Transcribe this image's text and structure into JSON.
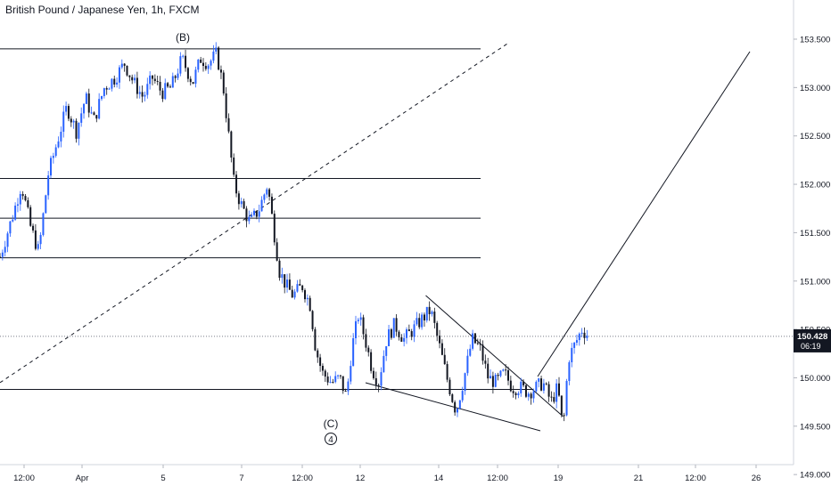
{
  "window": {
    "title": "British Pound / Japanese Yen, 1h, FXCM"
  },
  "chart_data": {
    "type": "candlestick",
    "symbol": "British Pound / Japanese Yen",
    "interval": "1h",
    "source": "FXCM",
    "y_axis": {
      "side": "right",
      "ticks": [
        "153.500",
        "153.000",
        "152.500",
        "152.000",
        "151.500",
        "151.000",
        "150.500",
        "150.000",
        "149.500",
        "149.000"
      ],
      "range": [
        149.0,
        153.9
      ]
    },
    "x_axis": {
      "ticks": [
        "12:00",
        "Apr",
        "5",
        "7",
        "12:00",
        "12",
        "14",
        "12:00",
        "19",
        "21",
        "12:00",
        "26"
      ]
    },
    "price": {
      "current": "150.428",
      "countdown": "06:19"
    },
    "colors": {
      "up": "#2962ff",
      "down": "#131722",
      "line": "#131722",
      "grid": "#ffffff",
      "background": "#ffffff"
    },
    "annotations": [
      {
        "label": "(B)",
        "price": 153.4
      },
      {
        "label": "(C)",
        "price": 149.55
      },
      {
        "label": "4",
        "circled": true
      }
    ],
    "horizontal_levels": [
      153.4,
      152.06,
      151.65,
      151.24,
      149.88
    ],
    "fan_levels_from_B": [
      152.06,
      151.65,
      151.24
    ],
    "base_line": 149.88,
    "wedge": {
      "upper_line": [
        {
          "t": 31.7,
          "p": 150.85
        },
        {
          "t": 44.3,
          "p": 149.6
        }
      ],
      "lower_line": [
        {
          "t": 28.2,
          "p": 149.85
        },
        {
          "t": 41.9,
          "p": 149.35
        }
      ]
    },
    "dashed_channel": [
      {
        "t": 0,
        "p": 149.95
      },
      {
        "t": 37.9,
        "p": 153.45
      }
    ],
    "projection_line": [
      {
        "t": 42.7,
        "p": 149.95
      },
      {
        "t": 59.3,
        "p": 153.4
      }
    ],
    "series": [
      {
        "ohlc_path": [
          [
            0,
            151.25
          ],
          [
            1,
            151.7
          ],
          [
            1.6,
            152.0
          ],
          [
            2.3,
            151.55
          ],
          [
            2.9,
            151.3
          ],
          [
            3.6,
            152.1
          ],
          [
            4.3,
            152.45
          ],
          [
            5,
            152.8
          ],
          [
            5.7,
            152.55
          ],
          [
            6.4,
            152.9
          ],
          [
            7,
            152.65
          ],
          [
            7.8,
            153.0
          ],
          [
            8.6,
            153.1
          ],
          [
            9.3,
            153.25
          ],
          [
            10,
            153.05
          ],
          [
            10.7,
            152.9
          ],
          [
            11.4,
            153.1
          ],
          [
            12.1,
            152.95
          ],
          [
            12.8,
            153.0
          ],
          [
            13.6,
            153.3
          ],
          [
            14.4,
            153.05
          ],
          [
            15,
            153.3
          ],
          [
            15.6,
            153.25
          ],
          [
            16.2,
            153.35
          ],
          [
            16.7,
            153.0
          ],
          [
            17.1,
            152.5
          ],
          [
            17.5,
            152.0
          ],
          [
            18.0,
            151.8
          ],
          [
            18.7,
            151.6
          ],
          [
            19.4,
            151.75
          ],
          [
            20.0,
            152.0
          ],
          [
            20.5,
            151.5
          ],
          [
            20.9,
            151.1
          ],
          [
            21.4,
            150.95
          ],
          [
            21.9,
            150.85
          ],
          [
            22.6,
            150.95
          ],
          [
            23.2,
            150.75
          ],
          [
            23.6,
            150.3
          ],
          [
            24.1,
            150.05
          ],
          [
            24.8,
            149.95
          ],
          [
            25.4,
            150.0
          ],
          [
            25.9,
            149.8
          ],
          [
            26.3,
            150.3
          ],
          [
            26.8,
            150.65
          ],
          [
            27.3,
            150.4
          ],
          [
            27.8,
            150.1
          ],
          [
            28.3,
            149.95
          ],
          [
            28.9,
            150.4
          ],
          [
            29.5,
            150.55
          ],
          [
            30.2,
            150.4
          ],
          [
            30.9,
            150.5
          ],
          [
            31.5,
            150.6
          ],
          [
            32.2,
            150.7
          ],
          [
            32.9,
            150.3
          ],
          [
            33.5,
            149.95
          ],
          [
            34.1,
            149.65
          ],
          [
            34.7,
            150.0
          ],
          [
            35.3,
            150.4
          ],
          [
            35.9,
            150.3
          ],
          [
            36.5,
            150.0
          ],
          [
            37.1,
            149.95
          ],
          [
            37.7,
            150.05
          ],
          [
            38.3,
            149.9
          ],
          [
            38.9,
            149.9
          ],
          [
            39.5,
            149.85
          ],
          [
            40.1,
            149.9
          ],
          [
            40.6,
            149.95
          ],
          [
            41.2,
            149.75
          ],
          [
            41.7,
            149.9
          ],
          [
            42.1,
            149.45
          ],
          [
            42.5,
            150.2
          ],
          [
            43.0,
            150.35
          ],
          [
            43.5,
            150.5
          ],
          [
            43.9,
            150.45
          ]
        ]
      }
    ]
  }
}
